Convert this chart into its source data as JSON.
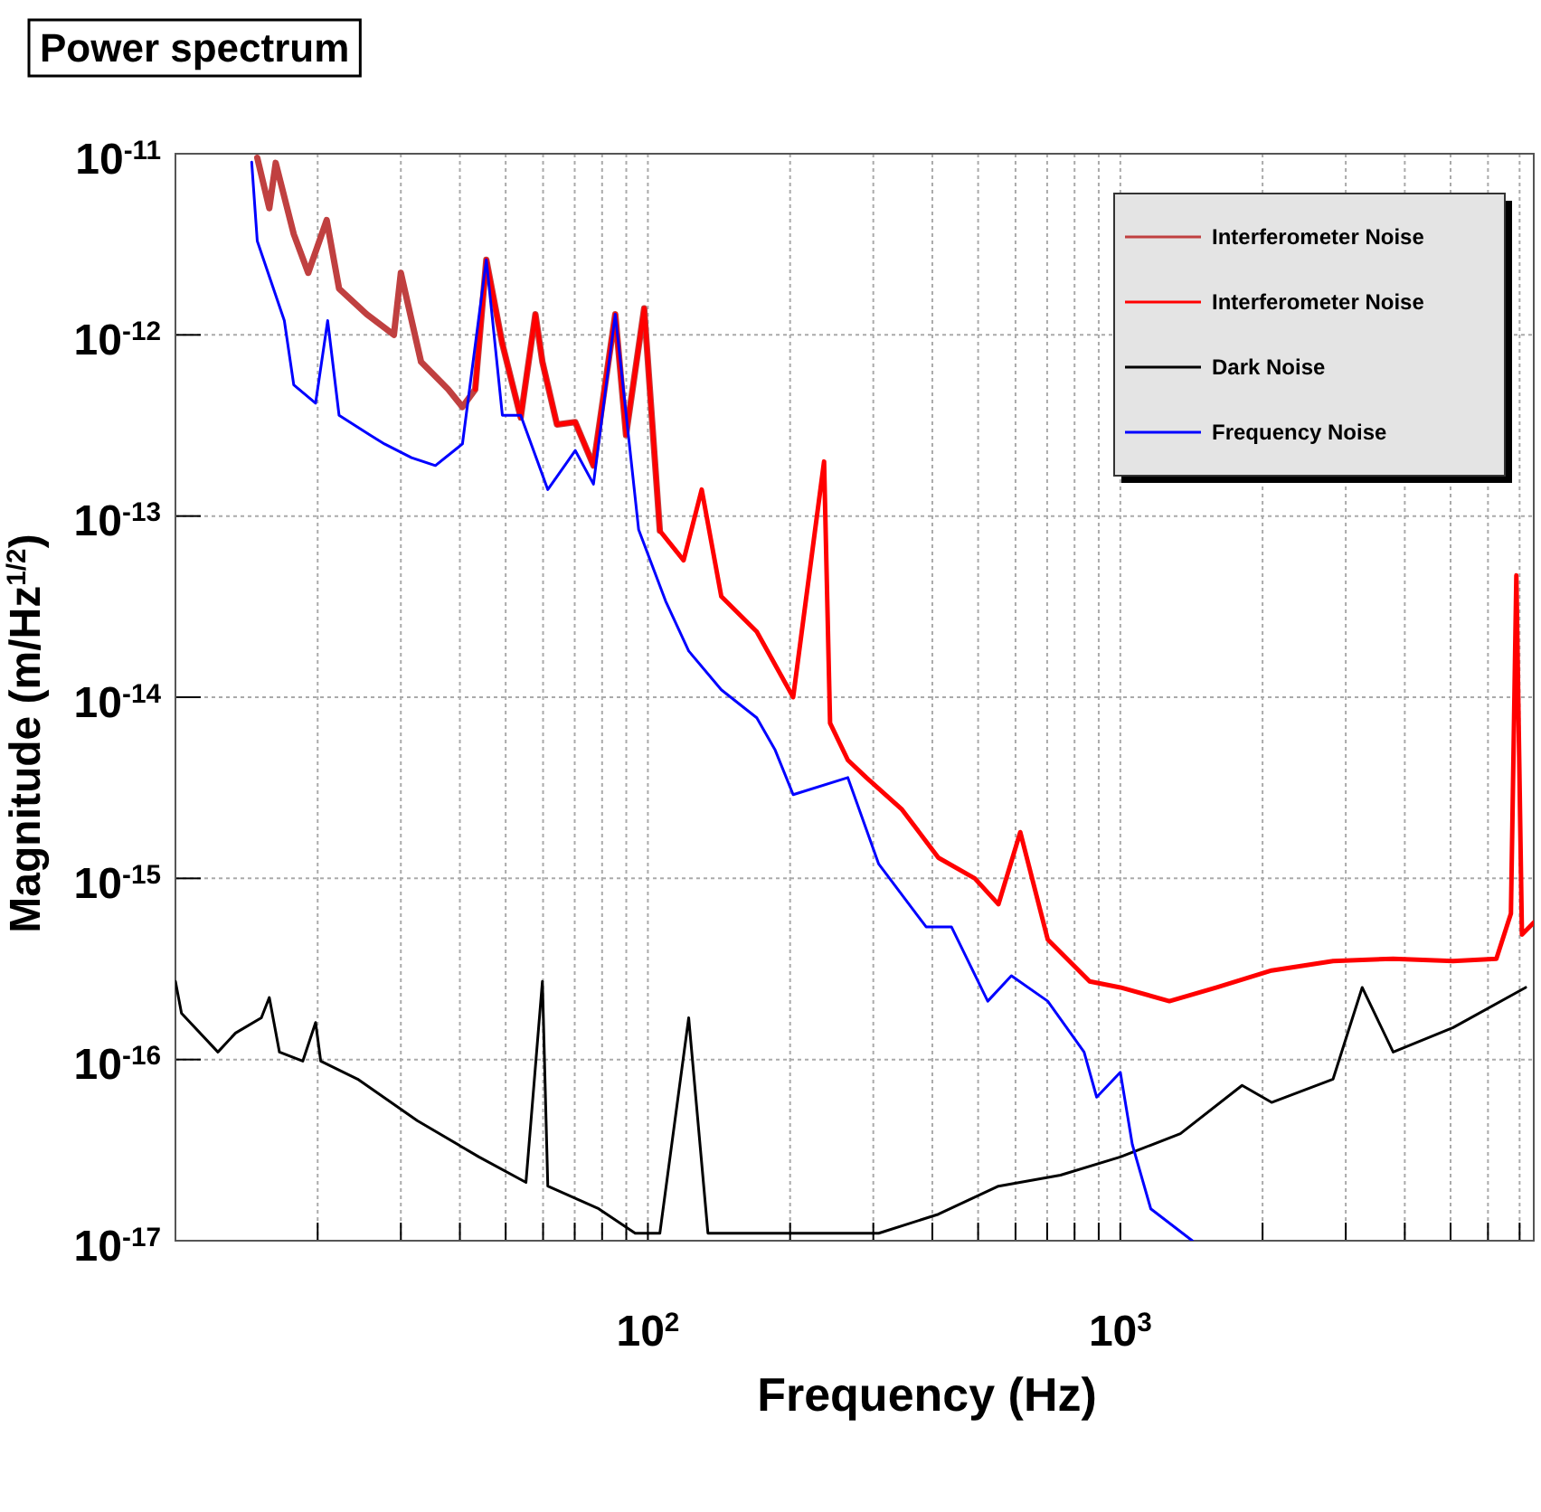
{
  "chart_data": {
    "type": "line",
    "title": "Power spectrum",
    "xlabel": "Frequency (Hz)",
    "ylabel": "Magnitude (m/Hz$^{1/2}$)",
    "log": "xy",
    "grid": true,
    "legend": "top right",
    "xlim": [
      10,
      7500
    ],
    "ylim": [
      1e-17,
      1e-11
    ],
    "xticks": [
      {
        "value": 20,
        "label": null
      },
      {
        "value": 30,
        "label": null
      },
      {
        "value": 40,
        "label": null
      },
      {
        "value": 50,
        "label": null
      },
      {
        "value": 60,
        "label": null
      },
      {
        "value": 70,
        "label": null
      },
      {
        "value": 80,
        "label": null
      },
      {
        "value": 90,
        "label": null
      },
      {
        "value": 100,
        "label": "10$^{2}$"
      },
      {
        "value": 200,
        "label": null
      },
      {
        "value": 300,
        "label": null
      },
      {
        "value": 400,
        "label": null
      },
      {
        "value": 500,
        "label": null
      },
      {
        "value": 600,
        "label": null
      },
      {
        "value": 700,
        "label": null
      },
      {
        "value": 800,
        "label": null
      },
      {
        "value": 900,
        "label": null
      },
      {
        "value": 1000,
        "label": "10$^{3}$"
      },
      {
        "value": 2000,
        "label": null
      },
      {
        "value": 3000,
        "label": null
      },
      {
        "value": 4000,
        "label": null
      },
      {
        "value": 5000,
        "label": null
      },
      {
        "value": 6000,
        "label": null
      },
      {
        "value": 7000,
        "label": null
      }
    ],
    "yticks": [
      {
        "value": 1e-17,
        "label": "10$^{-17}$"
      },
      {
        "value": 1e-16,
        "label": "10$^{-16}$"
      },
      {
        "value": 1e-15,
        "label": "10$^{-15}$"
      },
      {
        "value": 1e-14,
        "label": "10$^{-14}$"
      },
      {
        "value": 1e-13,
        "label": "10$^{-13}$"
      },
      {
        "value": 1e-12,
        "label": "10$^{-12}$"
      },
      {
        "value": 1e-11,
        "label": "10$^{-11}$"
      }
    ],
    "series": [
      {
        "name": "Interferometer Noise",
        "color": "#c04040",
        "x": [
          14.9,
          15.8,
          16.3,
          17.8,
          19.1,
          20.9,
          22.2,
          25.4,
          29.0,
          30.0,
          33.1,
          37.8,
          40.5,
          43.1,
          45.5,
          49.2,
          53.8,
          57.8,
          59.8,
          64.2,
          70.2,
          76.7,
          85.3,
          89.9,
          98.2,
          106
        ],
        "values": [
          9.5e-12,
          5e-12,
          8.9e-12,
          3.6e-12,
          2.2e-12,
          4.3e-12,
          1.8e-12,
          1.3e-12,
          1e-12,
          2.2e-12,
          7.1e-13,
          5e-13,
          4e-13,
          5e-13,
          2.6e-12,
          8.9e-13,
          3.5e-13,
          1.3e-12,
          7.1e-13,
          3.2e-13,
          3.3e-13,
          1.9e-13,
          1.3e-12,
          2.8e-13,
          1.4e-12,
          8.3e-14
        ]
      },
      {
        "name": "Interferometer Noise",
        "color": "#ff0000",
        "x": [
          43.1,
          45.5,
          49.2,
          53.8,
          57.8,
          59.8,
          64.2,
          70.2,
          76.7,
          85.3,
          89.9,
          98.2,
          106,
          119,
          130,
          143,
          170,
          203,
          236,
          243,
          265,
          290,
          345,
          412,
          492,
          552,
          614,
          702,
          861,
          1000,
          1270,
          1600,
          2090,
          2820,
          3780,
          5060,
          6250,
          6710,
          6890,
          7080,
          7500
        ],
        "values": [
          5e-13,
          2.6e-12,
          8.9e-13,
          3.5e-13,
          1.3e-12,
          7.1e-13,
          3.2e-13,
          3.3e-13,
          1.9e-13,
          1.3e-12,
          2.8e-13,
          1.4e-12,
          8.3e-14,
          5.7e-14,
          1.4e-13,
          3.6e-14,
          2.3e-14,
          1e-14,
          2e-13,
          7.2e-15,
          4.5e-15,
          3.6e-15,
          2.4e-15,
          1.3e-15,
          1e-15,
          7.2e-16,
          1.8e-15,
          4.6e-16,
          2.7e-16,
          2.5e-16,
          2.1e-16,
          2.5e-16,
          3.1e-16,
          3.5e-16,
          3.6e-16,
          3.5e-16,
          3.6e-16,
          6.4e-16,
          4.7e-14,
          4.9e-16,
          5.7e-16
        ]
      },
      {
        "name": "Dark Noise",
        "color": "#000000",
        "x": [
          10,
          10.3,
          12.3,
          13.4,
          15.2,
          15.8,
          16.6,
          18.6,
          19.8,
          20.3,
          24.3,
          32.5,
          43.9,
          55.2,
          59.8,
          61.4,
          78.7,
          94.0,
          106,
          122,
          134,
          170,
          308,
          412,
          552,
          747,
          1000,
          1340,
          1810,
          2090,
          2820,
          3250,
          3780,
          5060,
          7210
        ],
        "values": [
          2.7e-16,
          1.8e-16,
          1.1e-16,
          1.4e-16,
          1.7e-16,
          2.2e-16,
          1.1e-16,
          9.8e-17,
          1.6e-16,
          9.8e-17,
          7.8e-17,
          4.6e-17,
          2.9e-17,
          2.1e-17,
          2.7e-16,
          2e-17,
          1.5e-17,
          1.1e-17,
          1.1e-17,
          1.7e-16,
          1.1e-17,
          1.1e-17,
          1.1e-17,
          1.4e-17,
          2e-17,
          2.3e-17,
          2.9e-17,
          3.9e-17,
          7.2e-17,
          5.8e-17,
          7.8e-17,
          2.5e-16,
          1.1e-16,
          1.5e-16,
          2.5e-16
        ]
      },
      {
        "name": "Frequency Noise",
        "color": "#0000ff",
        "x": [
          14.5,
          14.9,
          17.0,
          17.8,
          19.8,
          21.0,
          22.2,
          25.8,
          27.7,
          31.6,
          35.5,
          40.5,
          45.5,
          49.2,
          53.8,
          61.4,
          70.2,
          76.7,
          85.3,
          95.6,
          109,
          122,
          143,
          170,
          186,
          203,
          265,
          308,
          388,
          439,
          524,
          588,
          702,
          838,
          891,
          1000,
          1060,
          1160,
          1420
        ],
        "values": [
          9e-12,
          3.3e-12,
          1.2e-12,
          5.3e-13,
          4.2e-13,
          1.2e-12,
          3.6e-13,
          2.8e-13,
          2.5e-13,
          2.1e-13,
          1.9e-13,
          2.5e-13,
          2.6e-12,
          3.6e-13,
          3.6e-13,
          1.4e-13,
          2.3e-13,
          1.5e-13,
          1.3e-12,
          8.4e-14,
          3.4e-14,
          1.8e-14,
          1.1e-14,
          7.7e-15,
          5.1e-15,
          2.9e-15,
          3.6e-15,
          1.2e-15,
          5.4e-16,
          5.4e-16,
          2.1e-16,
          2.9e-16,
          2.1e-16,
          1.1e-16,
          6.2e-17,
          8.5e-17,
          3.4e-17,
          1.5e-17,
          1e-17
        ]
      }
    ]
  }
}
